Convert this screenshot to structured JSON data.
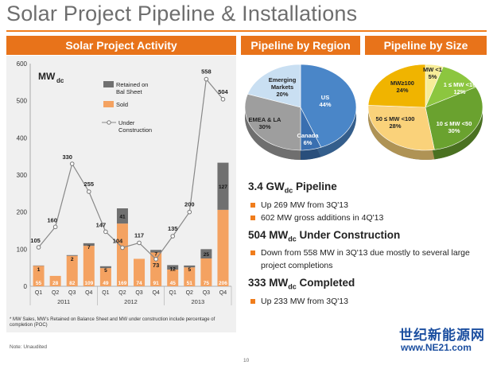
{
  "title": "Solar Project Pipeline & Installations",
  "panels": {
    "activity": "Solar Project Activity",
    "region": "Pipeline by Region",
    "size": "Pipeline by Size"
  },
  "unit_label": "MW",
  "unit_sub": "dc",
  "chart_data": [
    {
      "type": "bar",
      "title": "Solar Project Activity",
      "ylim": [
        0,
        600
      ],
      "yticks": [
        "0",
        "100",
        "200",
        "300",
        "400",
        "500",
        "600"
      ],
      "categories": [
        "Q1",
        "Q2",
        "Q3",
        "Q4",
        "Q1",
        "Q2",
        "Q3",
        "Q4",
        "Q1",
        "Q2",
        "Q3",
        "Q4"
      ],
      "years": [
        "2011",
        "2012",
        "2013"
      ],
      "legend": {
        "retained": "Retained on Bal Sheet",
        "sold": "Sold",
        "construction": "Under Construction"
      },
      "series": [
        {
          "name": "Sold",
          "values": [
            55,
            28,
            82,
            109,
            49,
            169,
            74,
            91,
            45,
            51,
            75,
            206
          ],
          "labels": [
            "55",
            "28",
            "82",
            "109",
            "49",
            "169",
            "74",
            "91",
            "45",
            "51",
            "75",
            "206"
          ]
        },
        {
          "name": "Retained on Bal Sheet",
          "values": [
            1,
            0,
            2,
            7,
            5,
            41,
            0,
            7,
            12,
            5,
            25,
            127
          ],
          "labels": [
            "1",
            "",
            "2",
            "7",
            "5",
            "41",
            "",
            "7",
            "12",
            "5",
            "25",
            "127"
          ]
        },
        {
          "name": "Under Construction",
          "values": [
            105,
            160,
            330,
            255,
            147,
            104,
            117,
            73,
            135,
            200,
            558,
            504
          ],
          "labels": [
            "105",
            "160",
            "330",
            "255",
            "147",
            "104",
            "117",
            "73",
            "135",
            "200",
            "558",
            "504"
          ]
        }
      ],
      "colors": {
        "sold": "#f4a261",
        "retained": "#707070",
        "line": "#888888"
      }
    },
    {
      "type": "pie",
      "title": "Pipeline by Region",
      "slices": [
        {
          "label": "US",
          "value": 44,
          "pct": "44%",
          "color": "#4a86c8"
        },
        {
          "label": "Canada",
          "value": 6,
          "pct": "6%",
          "color": "#3a6fb0"
        },
        {
          "label": "EMEA & LA",
          "value": 30,
          "pct": "30%",
          "color": "#9e9e9e"
        },
        {
          "label": "Emerging Markets",
          "value": 20,
          "pct": "20%",
          "color": "#c9dff2"
        }
      ]
    },
    {
      "type": "pie",
      "title": "Pipeline by Size",
      "slices": [
        {
          "label": "MW <1",
          "value": 5,
          "pct": "5%",
          "color": "#f7ec98"
        },
        {
          "label": "1 ≤ MW <10",
          "value": 12,
          "pct": "12%",
          "color": "#8cc63f"
        },
        {
          "label": "10 ≤ MW <50",
          "value": 30,
          "pct": "30%",
          "color": "#6aa22f"
        },
        {
          "label": "50 ≤ MW <100",
          "value": 28,
          "pct": "28%",
          "color": "#fad27a"
        },
        {
          "label": "MW≥100",
          "value": 24,
          "pct": "24%",
          "color": "#f0b400"
        }
      ]
    }
  ],
  "footnote": "* MW Sales, MW's Retained on Balance Sheet and MW under construction include percentage of completion (POC)",
  "note": "Note:  Unaudited",
  "page_number": "10",
  "bullets": [
    {
      "head": "3.4 GW",
      "sub": "dc",
      "tail": " Pipeline",
      "items": [
        "Up 269 MW from 3Q'13",
        "602 MW gross additions in 4Q'13"
      ]
    },
    {
      "head": "504 MW",
      "sub": "dc",
      "tail": " Under Construction",
      "items": [
        "Down from 558 MW in 3Q'13 due mostly to several large project completions"
      ]
    },
    {
      "head": "333 MW",
      "sub": "dc",
      "tail": " Completed",
      "items": [
        "Up 233 MW from 3Q'13"
      ]
    }
  ],
  "watermark": {
    "cn": "世纪新能源网",
    "url": "www.NE21.com"
  }
}
